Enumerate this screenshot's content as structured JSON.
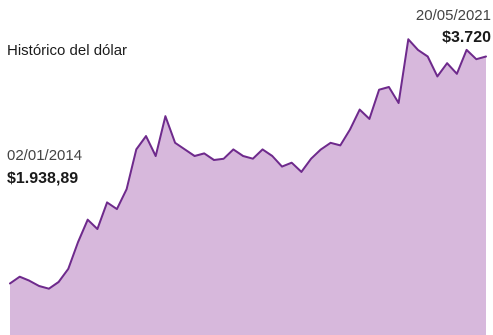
{
  "chart_data": {
    "type": "area",
    "title": "Histórico del dólar",
    "xlabel": "",
    "ylabel": "",
    "x_start": "02/01/2014",
    "x_end": "20/05/2021",
    "grid": false,
    "legend": "none",
    "line_color": "#6e2a8c",
    "fill_color": "#d7b8dc",
    "start": {
      "date": "02/01/2014",
      "label": "$1.938,89",
      "value": 1938.89
    },
    "end": {
      "date": "20/05/2021",
      "label": "$3.720",
      "value": 3720
    },
    "series": [
      {
        "values": [
          1940,
          1990,
          1960,
          1920,
          1900,
          1950,
          2050,
          2250,
          2420,
          2350,
          2550,
          2500,
          2650,
          2950,
          3050,
          2900,
          3200,
          3000,
          2950,
          2900,
          2920,
          2870,
          2880,
          2950,
          2900,
          2880,
          2950,
          2900,
          2820,
          2850,
          2780,
          2880,
          2950,
          3000,
          2980,
          3100,
          3250,
          3180,
          3400,
          3420,
          3300,
          3780,
          3700,
          3650,
          3500,
          3600,
          3520,
          3700,
          3630,
          3650
        ]
      }
    ],
    "ylim": [
      1400,
      3850
    ]
  }
}
